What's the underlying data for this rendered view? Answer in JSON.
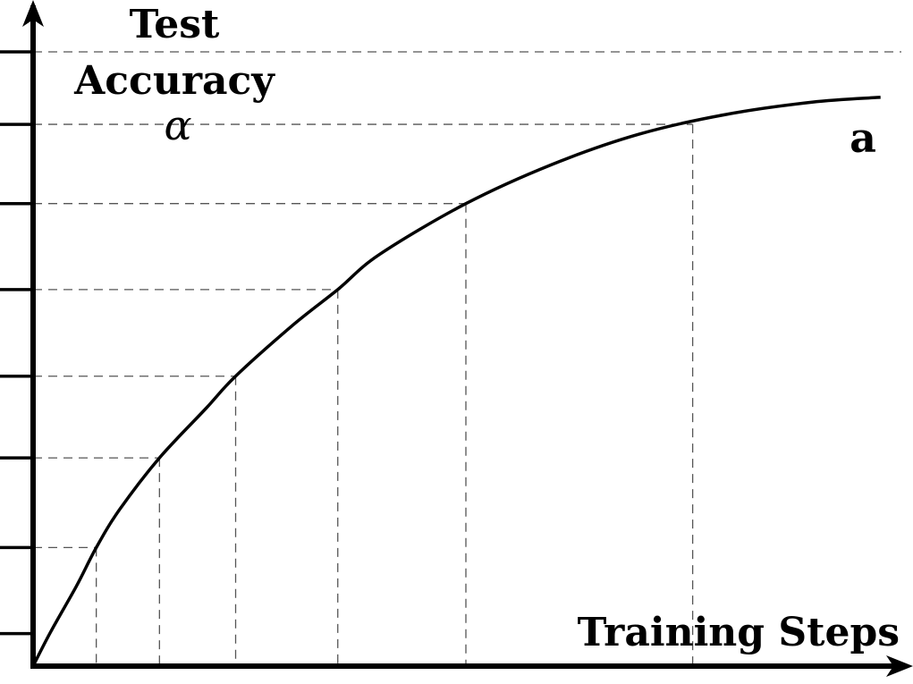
{
  "chart_data": {
    "type": "line",
    "ylabel_lines": [
      "Test",
      "Accuracy"
    ],
    "ylabel_symbol": "α",
    "xlabel": "Training Steps",
    "grid": false,
    "xlim": [
      0,
      1
    ],
    "ylim": [
      0,
      1
    ],
    "series": [
      {
        "name": "a",
        "x": [
          0,
          0.02,
          0.05,
          0.073,
          0.1,
          0.146,
          0.2,
          0.234,
          0.3,
          0.352,
          0.4,
          0.5,
          0.6,
          0.6,
          0.7,
          0.8,
          0.9,
          0.979
        ],
        "y": [
          0,
          0.055,
          0.13,
          0.193,
          0.255,
          0.339,
          0.42,
          0.472,
          0.555,
          0.613,
          0.67,
          0.753,
          0.817,
          0.817,
          0.866,
          0.898,
          0.918,
          0.926
        ]
      }
    ],
    "guide_points": [
      {
        "x": 0.073,
        "y": 0.193
      },
      {
        "x": 0.146,
        "y": 0.339
      },
      {
        "x": 0.234,
        "y": 0.472
      },
      {
        "x": 0.352,
        "y": 0.613
      },
      {
        "x": 0.5,
        "y": 0.753
      },
      {
        "x": 0.762,
        "y": 0.882
      }
    ],
    "y_ticks": [
      0.053,
      0.193,
      0.339,
      0.472,
      0.613,
      0.753,
      0.882,
      1.0
    ],
    "top_reference_y": 1.0
  }
}
